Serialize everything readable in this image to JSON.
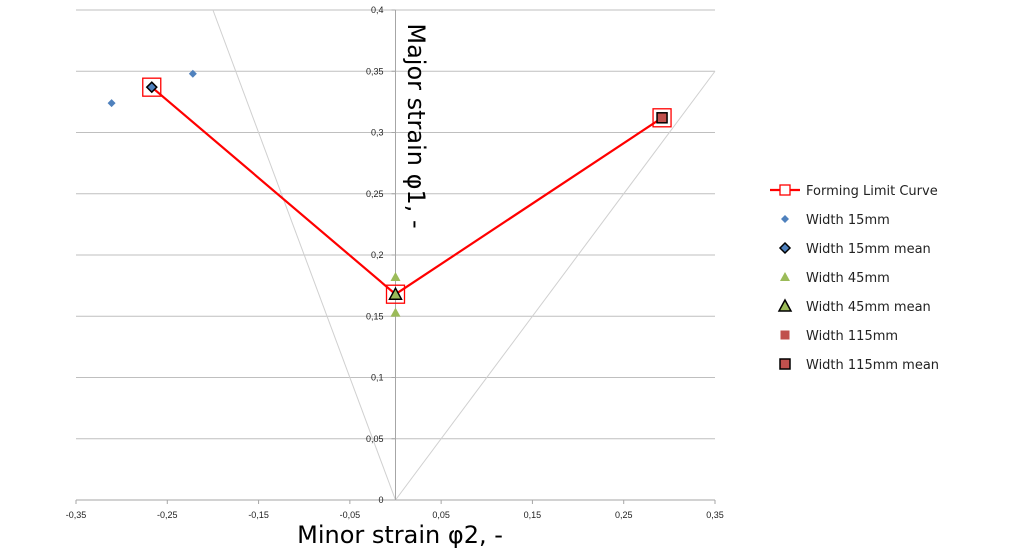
{
  "chart_data": {
    "type": "scatter",
    "xlabel": "Minor strain φ2, -",
    "ylabel": "Major strain φ1, -",
    "xlim": [
      -0.35,
      0.35
    ],
    "ylim": [
      0,
      0.4
    ],
    "x_ticks": [
      "-0,35",
      "-0,25",
      "-0,15",
      "-0,05",
      "0,05",
      "0,15",
      "0,25",
      "0,35"
    ],
    "x_tick_values": [
      -0.35,
      -0.25,
      -0.15,
      -0.05,
      0.05,
      0.15,
      0.25,
      0.35
    ],
    "y_ticks": [
      "0",
      "0,05",
      "0,1",
      "0,15",
      "0,2",
      "0,25",
      "0,3",
      "0,35",
      "0,4"
    ],
    "y_tick_values": [
      0,
      0.05,
      0.1,
      0.15,
      0.2,
      0.25,
      0.3,
      0.35,
      0.4
    ],
    "grid": "horizontal",
    "legend_position": "right",
    "reference_lines": [
      {
        "x": [
          0,
          -0.2
        ],
        "y": [
          0,
          0.4
        ],
        "color": "#d0d0d0"
      },
      {
        "x": [
          0,
          0.35
        ],
        "y": [
          0,
          0.35
        ],
        "color": "#d0d0d0"
      }
    ],
    "series": [
      {
        "name": "Forming Limit Curve",
        "kind": "line",
        "marker": "open-square",
        "color": "#ff0000",
        "x": [
          -0.267,
          0.0,
          0.292
        ],
        "y": [
          0.337,
          0.168,
          0.312
        ]
      },
      {
        "name": "Width 15mm",
        "kind": "scatter",
        "marker": "diamond",
        "color": "#4f81bd",
        "x": [
          -0.311,
          -0.222
        ],
        "y": [
          0.324,
          0.348
        ]
      },
      {
        "name": "Width 15mm mean",
        "kind": "scatter",
        "marker": "diamond-outlined",
        "color": "#4f81bd",
        "x": [
          -0.267
        ],
        "y": [
          0.337
        ]
      },
      {
        "name": "Width 45mm",
        "kind": "scatter",
        "marker": "triangle",
        "color": "#9bbb59",
        "x": [
          0.0,
          0.0
        ],
        "y": [
          0.182,
          0.153
        ]
      },
      {
        "name": "Width 45mm mean",
        "kind": "scatter",
        "marker": "triangle-outlined",
        "color": "#9bbb59",
        "x": [
          0.0
        ],
        "y": [
          0.168
        ]
      },
      {
        "name": "Width 115mm",
        "kind": "scatter",
        "marker": "square",
        "color": "#c0504d",
        "x": [],
        "y": []
      },
      {
        "name": "Width 115mm mean",
        "kind": "scatter",
        "marker": "square-outlined",
        "color": "#c0504d",
        "x": [
          0.292
        ],
        "y": [
          0.312
        ]
      }
    ]
  }
}
